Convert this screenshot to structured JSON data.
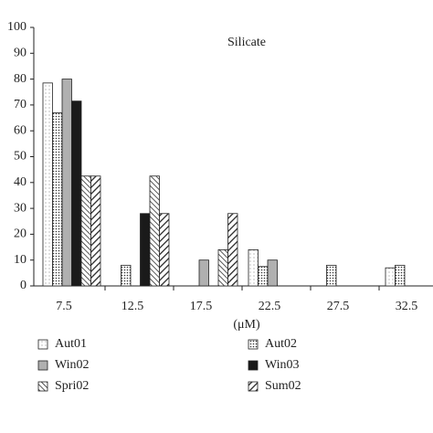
{
  "chart_data": {
    "type": "bar",
    "annotation": "Silicate",
    "x_label": "(μM)",
    "categories": [
      "7.5",
      "12.5",
      "17.5",
      "22.5",
      "27.5",
      "32.5"
    ],
    "series": [
      {
        "name": "Aut01",
        "color": "#ffffff",
        "pattern": "sparse-dots",
        "values": [
          78.5,
          0,
          0,
          14,
          0,
          7
        ]
      },
      {
        "name": "Aut02",
        "color": "#ffffff",
        "pattern": "dots",
        "values": [
          67,
          8,
          0,
          7.5,
          8,
          8
        ]
      },
      {
        "name": "Win02",
        "color": "#b0b0b0",
        "pattern": "solid",
        "values": [
          80,
          0,
          10,
          10,
          0,
          0
        ]
      },
      {
        "name": "Win03",
        "color": "#1a1a1a",
        "pattern": "solid",
        "values": [
          71.5,
          28,
          0,
          0,
          0,
          0
        ]
      },
      {
        "name": "Spri02",
        "color": "#ffffff",
        "pattern": "back-hatch",
        "values": [
          42.5,
          42.5,
          14,
          0,
          0,
          0
        ]
      },
      {
        "name": "Sum02",
        "color": "#ffffff",
        "pattern": "fore-hatch",
        "values": [
          42.5,
          28,
          28,
          0,
          0,
          0
        ]
      }
    ],
    "ylim": [
      0,
      100
    ],
    "yticks": [
      0,
      10,
      20,
      30,
      40,
      50,
      60,
      70,
      80,
      90,
      100
    ],
    "grid": false
  }
}
